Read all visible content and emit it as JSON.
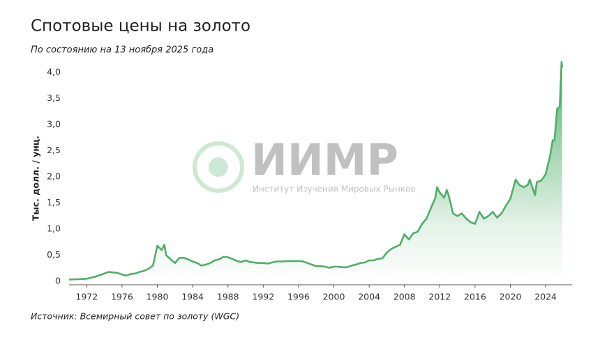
{
  "chart_data": {
    "type": "area",
    "title": "Спотовые цены на золото",
    "subtitle": "По состоянию на 13 ноября 2025 года",
    "y_label": "Тыс. долл. / унц.",
    "source": "Источник: Всемирный совет по золоту (WGC)",
    "watermark": "ИИМР",
    "watermark_subtitle": "Институт Изучения Мировых Рынков",
    "color": "#4fae68",
    "x": [
      1970,
      1971,
      1972,
      1973,
      1973.5,
      1974,
      1974.5,
      1975,
      1975.5,
      1976,
      1976.5,
      1977,
      1977.5,
      1978,
      1978.5,
      1979,
      1979.5,
      1980,
      1980.5,
      1980.8,
      1981,
      1981.5,
      1982,
      1982.5,
      1983,
      1983.5,
      1984,
      1984.5,
      1985,
      1985.5,
      1986,
      1986.5,
      1987,
      1987.5,
      1988,
      1988.5,
      1989,
      1989.5,
      1990,
      1990.5,
      1991,
      1991.5,
      1992,
      1992.5,
      1993,
      1993.5,
      1994,
      1995,
      1996,
      1996.5,
      1997,
      1997.5,
      1998,
      1998.5,
      1999,
      1999.5,
      2000,
      2000.5,
      2001,
      2001.5,
      2002,
      2002.5,
      2003,
      2003.5,
      2004,
      2004.5,
      2005,
      2005.5,
      2006,
      2006.5,
      2007,
      2007.5,
      2008,
      2008.5,
      2009,
      2009.5,
      2010,
      2010.5,
      2011,
      2011.5,
      2011.7,
      2012,
      2012.5,
      2012.8,
      2013,
      2013.5,
      2014,
      2014.5,
      2015,
      2015.5,
      2016,
      2016.5,
      2017,
      2017.5,
      2018,
      2018.5,
      2019,
      2019.5,
      2020,
      2020.6,
      2021,
      2021.5,
      2022,
      2022.2,
      2022.8,
      2023,
      2023.5,
      2024,
      2024.5,
      2024.8,
      2025,
      2025.3,
      2025.6,
      2025.8,
      2025.87
    ],
    "values": [
      0.035,
      0.04,
      0.05,
      0.09,
      0.12,
      0.15,
      0.18,
      0.17,
      0.16,
      0.13,
      0.11,
      0.14,
      0.15,
      0.18,
      0.2,
      0.24,
      0.3,
      0.68,
      0.6,
      0.7,
      0.5,
      0.42,
      0.35,
      0.45,
      0.45,
      0.42,
      0.38,
      0.35,
      0.3,
      0.32,
      0.35,
      0.4,
      0.42,
      0.47,
      0.46,
      0.43,
      0.39,
      0.37,
      0.4,
      0.37,
      0.36,
      0.35,
      0.35,
      0.34,
      0.36,
      0.38,
      0.38,
      0.385,
      0.39,
      0.38,
      0.35,
      0.32,
      0.29,
      0.29,
      0.28,
      0.26,
      0.28,
      0.28,
      0.27,
      0.27,
      0.3,
      0.32,
      0.35,
      0.36,
      0.4,
      0.4,
      0.43,
      0.44,
      0.55,
      0.62,
      0.66,
      0.7,
      0.9,
      0.8,
      0.92,
      0.95,
      1.1,
      1.2,
      1.4,
      1.6,
      1.8,
      1.7,
      1.6,
      1.75,
      1.65,
      1.3,
      1.25,
      1.3,
      1.2,
      1.13,
      1.1,
      1.33,
      1.2,
      1.25,
      1.33,
      1.22,
      1.3,
      1.45,
      1.58,
      1.95,
      1.85,
      1.8,
      1.85,
      1.95,
      1.65,
      1.9,
      1.93,
      2.05,
      2.4,
      2.7,
      2.7,
      3.3,
      3.35,
      4.2,
      4.1
    ],
    "xlim": [
      1970,
      2026
    ],
    "xticks": [
      1972,
      1976,
      1980,
      1984,
      1988,
      1992,
      1996,
      2000,
      2004,
      2008,
      2012,
      2016,
      2020,
      2024
    ],
    "ylim": [
      0,
      4.2
    ],
    "yticks": [
      0,
      {
        "value": 0.5,
        "label": "0,5"
      },
      {
        "value": 1.0,
        "label": "1,0"
      },
      {
        "value": 1.5,
        "label": "1,5"
      },
      {
        "value": 2.0,
        "label": "2,0"
      },
      {
        "value": 2.5,
        "label": "2,5"
      },
      {
        "value": 3.0,
        "label": "3,0"
      },
      {
        "value": 3.5,
        "label": "3,5"
      },
      {
        "value": 4.0,
        "label": "4,0"
      }
    ]
  }
}
